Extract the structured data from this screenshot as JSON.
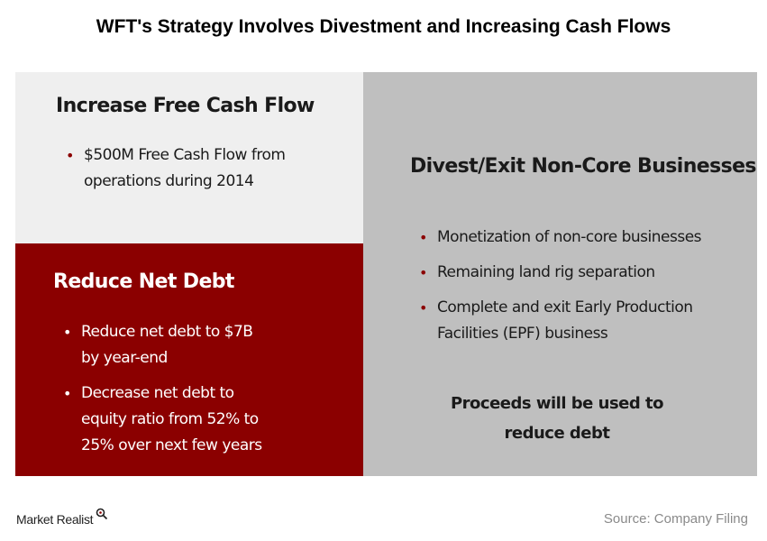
{
  "title": "WFT's Strategy Involves Divestment and Increasing Cash Flows",
  "cash_panel": {
    "heading": "Increase Free Cash Flow",
    "bullets": [
      "$500M Free Cash Flow from\noperations during 2014"
    ]
  },
  "debt_panel": {
    "heading": "Reduce Net Debt",
    "bullets": [
      "Reduce net debt to $7B\nby year-end",
      "Decrease net debt to\nequity ratio from 52% to\n25% over next few years"
    ]
  },
  "divest_panel": {
    "heading": "Divest/Exit Non-Core Businesses",
    "bullets": [
      "Monetization of non-core businesses",
      "Remaining land rig separation",
      "Complete and exit Early Production\nFacilities (EPF) business"
    ],
    "proceeds": "Proceeds will be used to\nreduce debt"
  },
  "footer": {
    "logo": "Market Realist",
    "source": "Source: Company Filing"
  },
  "colors": {
    "accent_red": "#8b0000",
    "light_panel": "#efefef",
    "gray_panel": "#bfbfbf"
  }
}
